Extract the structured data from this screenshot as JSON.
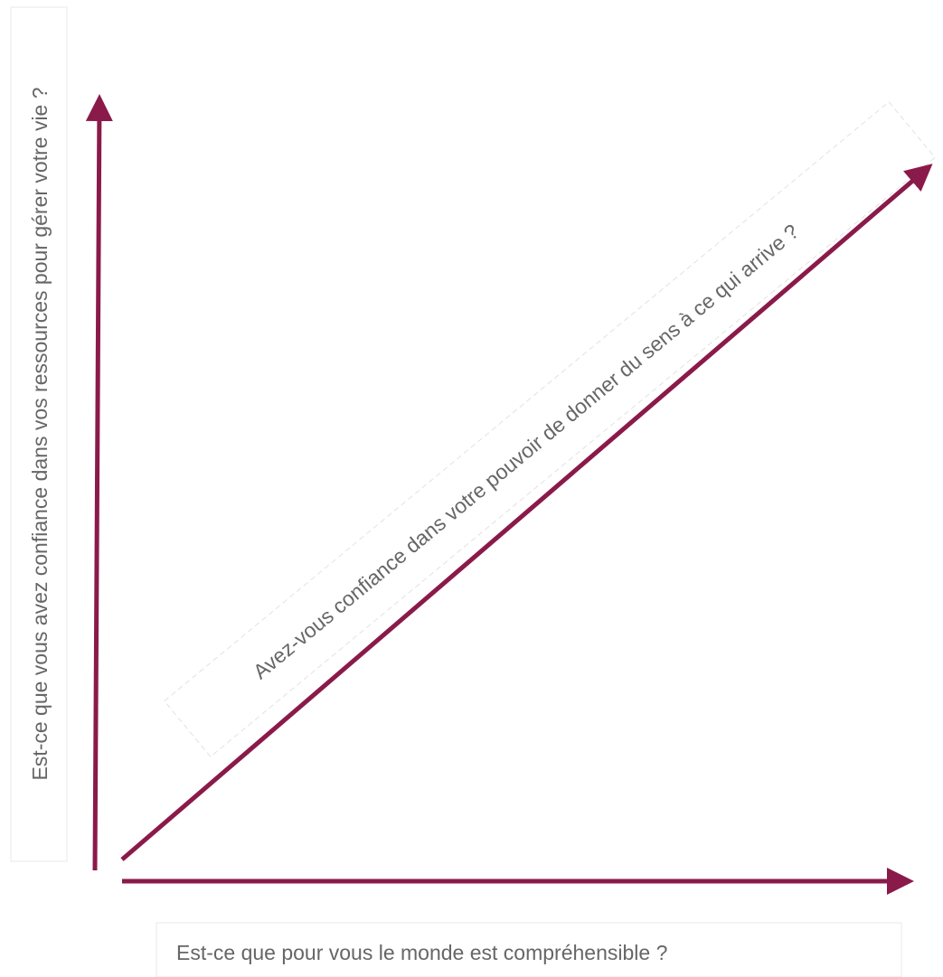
{
  "diagram": {
    "y_axis_label": "Est-ce que vous avez confiance dans vos ressources pour gérer votre vie ?",
    "x_axis_label": "Est-ce que pour vous le monde est compréhensible ?",
    "diagonal_label": "Avez-vous confiance dans votre pouvoir de donner du sens à ce qui arrive ?"
  },
  "colors": {
    "arrow": "#8a1a4a",
    "text": "#666666",
    "box_border": "#e9e9e9"
  }
}
